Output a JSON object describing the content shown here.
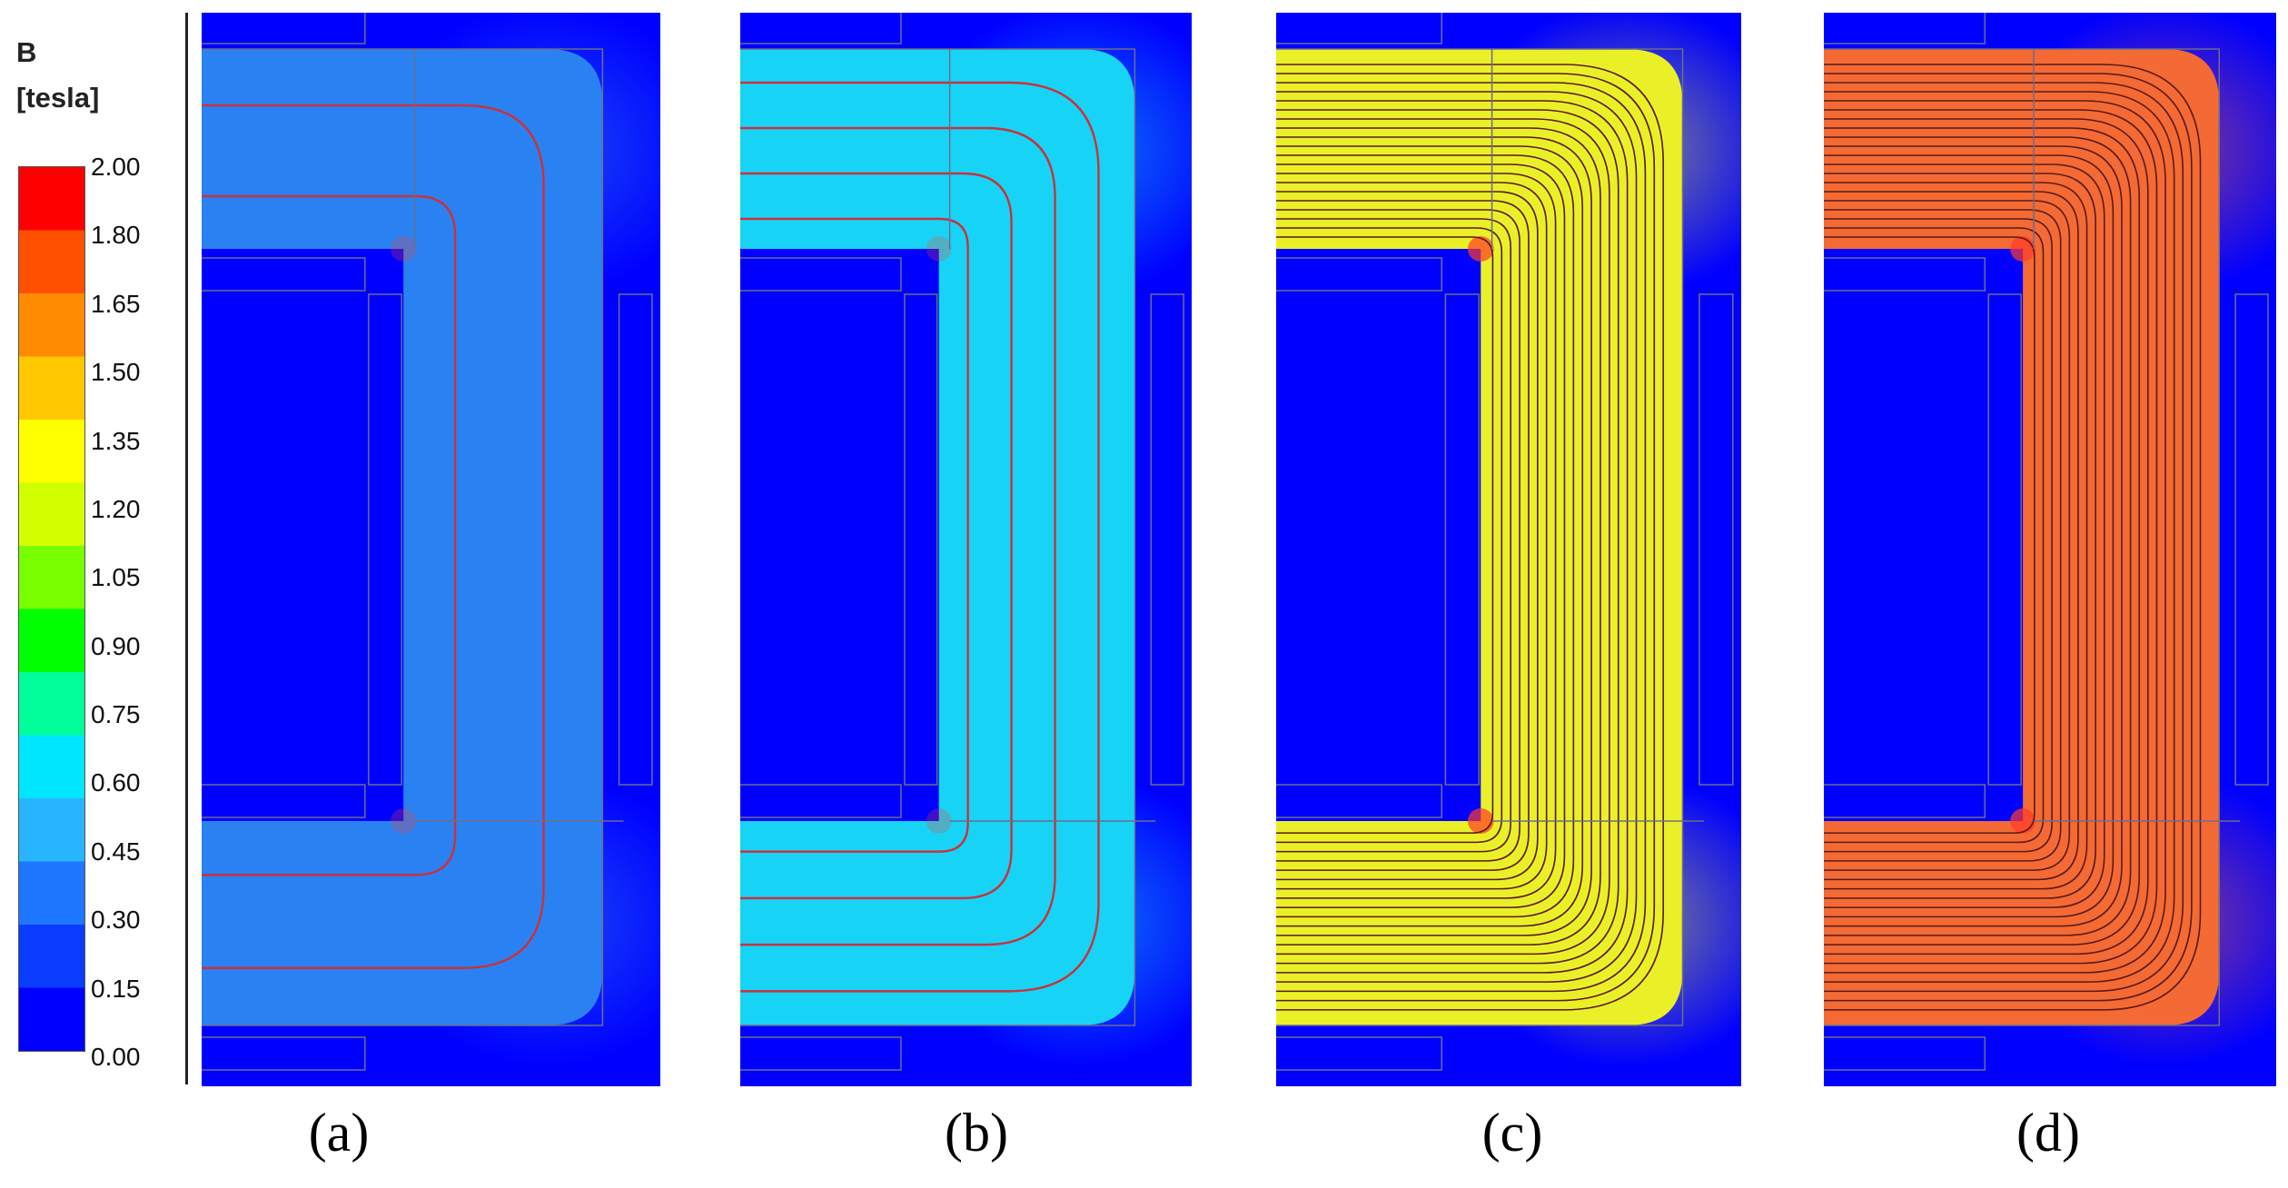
{
  "legend": {
    "quantity": "B",
    "unit": "[tesla]",
    "ticks": [
      "2.00",
      "1.80",
      "1.65",
      "1.50",
      "1.35",
      "1.20",
      "1.05",
      "0.90",
      "0.75",
      "0.60",
      "0.45",
      "0.30",
      "0.15",
      "0.00"
    ],
    "colors": [
      "#0000ff",
      "#0a3cff",
      "#1e78ff",
      "#28b4ff",
      "#00e6ff",
      "#00ff9a",
      "#00ff00",
      "#78ff00",
      "#d2ff00",
      "#ffff00",
      "#ffc800",
      "#ff8c00",
      "#ff5000",
      "#ff0000"
    ]
  },
  "panels": [
    {
      "caption": "(a)",
      "core_color": "#2a82f2",
      "line_count": 2,
      "line_color": "#c8323c"
    },
    {
      "caption": "(b)",
      "core_color": "#17d4f6",
      "line_count": 4,
      "line_color": "#c8323c"
    },
    {
      "caption": "(c)",
      "core_color": "#eaf028",
      "line_count": 20,
      "line_color": "#5a1a1a"
    },
    {
      "caption": "(d)",
      "core_color": "#f46a34",
      "line_count": 20,
      "line_color": "#5a1a1a"
    }
  ],
  "background_color": "#0000ff"
}
